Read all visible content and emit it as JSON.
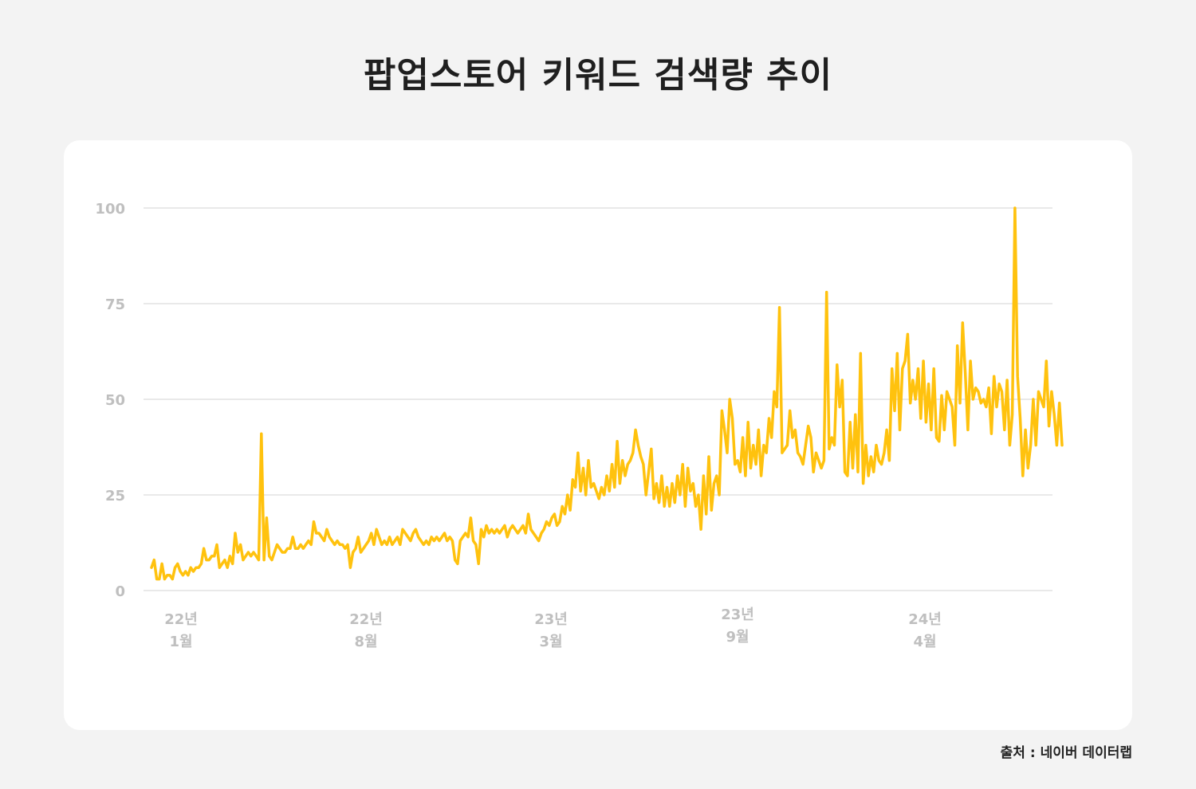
{
  "title": "팝업스토어 키워드 검색량 추이",
  "source": "출처 : 네이버 데이터랩",
  "colors": {
    "line": "#FFC20E",
    "grid": "#e2e2e2",
    "tick": "#bfbfbf",
    "background": "#f3f3f3",
    "card": "#ffffff"
  },
  "chart_data": {
    "type": "line",
    "title": "팝업스토어 키워드 검색량 추이",
    "xlabel": "",
    "ylabel": "",
    "ylim": [
      0,
      100
    ],
    "grid": true,
    "yticks": [
      0,
      25,
      50,
      75,
      100
    ],
    "xtick_labels": [
      {
        "line1": "22년",
        "line2": "1월"
      },
      {
        "line1": "22년",
        "line2": "8월"
      },
      {
        "line1": "23년",
        "line2": "3월"
      },
      {
        "line1": "23년",
        "line2": "9월"
      },
      {
        "line1": "24년",
        "line2": "4월"
      }
    ],
    "series": [
      {
        "values": [
          6,
          8,
          3,
          3,
          7,
          3,
          4,
          4,
          3,
          6,
          7,
          5,
          4,
          5,
          4,
          6,
          5,
          6,
          6,
          7,
          11,
          8,
          8,
          9,
          9,
          12,
          6,
          7,
          8,
          6,
          9,
          7,
          15,
          10,
          12,
          8,
          9,
          10,
          9,
          10,
          9,
          8,
          41,
          8,
          19,
          9,
          8,
          10,
          12,
          11,
          10,
          10,
          11,
          11,
          14,
          11,
          11,
          12,
          11,
          12,
          13,
          12,
          18,
          15,
          15,
          14,
          13,
          16,
          14,
          13,
          12,
          13,
          12,
          12,
          11,
          12,
          6,
          10,
          11,
          14,
          10,
          11,
          12,
          13,
          15,
          12,
          16,
          14,
          12,
          13,
          12,
          14,
          12,
          13,
          14,
          12,
          16,
          15,
          14,
          13,
          15,
          16,
          14,
          13,
          12,
          13,
          12,
          14,
          13,
          14,
          13,
          14,
          15,
          13,
          14,
          13,
          8,
          7,
          13,
          14,
          15,
          14,
          19,
          13,
          12,
          7,
          16,
          14,
          17,
          15,
          16,
          15,
          16,
          15,
          16,
          17,
          14,
          16,
          17,
          16,
          15,
          16,
          17,
          15,
          20,
          16,
          15,
          14,
          13,
          15,
          16,
          18,
          17,
          19,
          20,
          17,
          18,
          22,
          20,
          25,
          21,
          29,
          27,
          36,
          26,
          32,
          25,
          34,
          27,
          28,
          26,
          24,
          27,
          25,
          30,
          26,
          33,
          27,
          39,
          28,
          34,
          30,
          33,
          34,
          36,
          42,
          38,
          35,
          33,
          25,
          31,
          37,
          24,
          28,
          23,
          30,
          22,
          27,
          22,
          28,
          23,
          30,
          25,
          33,
          22,
          32,
          26,
          28,
          22,
          25,
          16,
          30,
          20,
          35,
          21,
          28,
          30,
          25,
          47,
          42,
          36,
          50,
          45,
          33,
          34,
          31,
          40,
          30,
          44,
          32,
          38,
          33,
          42,
          30,
          38,
          36,
          45,
          40,
          52,
          48,
          74,
          36,
          37,
          38,
          47,
          40,
          42,
          36,
          35,
          33,
          38,
          43,
          40,
          31,
          36,
          34,
          32,
          34,
          78,
          37,
          40,
          38,
          59,
          48,
          55,
          31,
          30,
          44,
          32,
          46,
          31,
          62,
          28,
          38,
          30,
          35,
          31,
          38,
          34,
          33,
          36,
          42,
          34,
          58,
          47,
          62,
          42,
          58,
          60,
          67,
          49,
          55,
          50,
          58,
          45,
          60,
          44,
          54,
          42,
          58,
          40,
          39,
          51,
          42,
          52,
          50,
          48,
          38,
          64,
          49,
          70,
          57,
          42,
          60,
          50,
          53,
          52,
          49,
          50,
          48,
          53,
          41,
          56,
          48,
          54,
          52,
          42,
          55,
          38,
          46,
          100,
          56,
          45,
          30,
          42,
          32,
          38,
          50,
          38,
          52,
          50,
          48,
          60,
          43,
          52,
          46,
          38,
          49,
          38
        ]
      }
    ]
  }
}
